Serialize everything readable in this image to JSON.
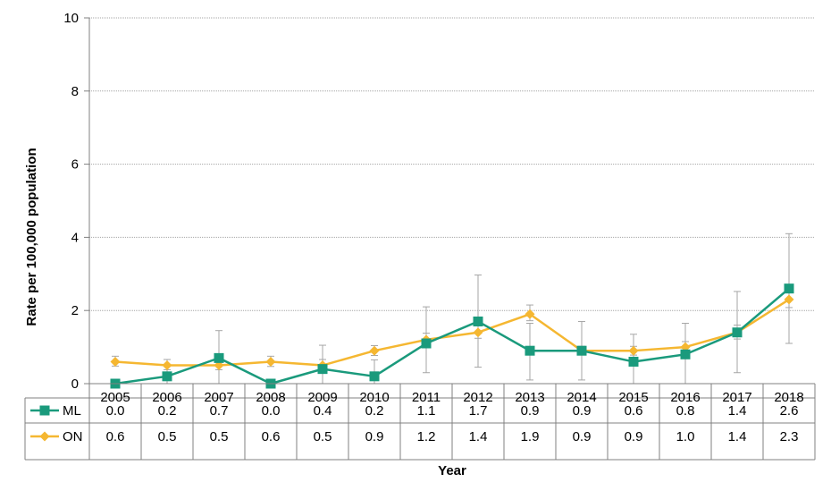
{
  "chart_data": {
    "type": "line",
    "title": "",
    "xlabel": "Year",
    "ylabel": "Rate per 100,000 population",
    "ylim": [
      0,
      10
    ],
    "yticks": [
      0,
      2,
      4,
      6,
      8,
      10
    ],
    "grid": true,
    "legend": "data-table-left",
    "categories": [
      "2005",
      "2006",
      "2007",
      "2008",
      "2009",
      "2010",
      "2011",
      "2012",
      "2013",
      "2014",
      "2015",
      "2016",
      "2017",
      "2018"
    ],
    "series": [
      {
        "name": "ML",
        "color": "#1a9a7c",
        "marker": "square",
        "values": [
          0.0,
          0.2,
          0.7,
          0.0,
          0.4,
          0.2,
          1.1,
          1.7,
          0.9,
          0.9,
          0.6,
          0.8,
          1.4,
          2.6
        ],
        "labels": [
          "0.0",
          "0.2",
          "0.7",
          "0.0",
          "0.4",
          "0.2",
          "1.1",
          "1.7",
          "0.9",
          "0.9",
          "0.6",
          "0.8",
          "1.4",
          "2.6"
        ],
        "ci_low": [
          0.0,
          0.0,
          0.0,
          0.0,
          0.0,
          0.0,
          0.3,
          0.45,
          0.1,
          0.1,
          0.0,
          0.0,
          0.3,
          1.1
        ],
        "ci_high": [
          0.0,
          0.5,
          1.45,
          0.0,
          1.05,
          0.65,
          2.1,
          2.97,
          1.65,
          1.7,
          1.35,
          1.65,
          2.52,
          4.1
        ]
      },
      {
        "name": "ON",
        "color": "#f5b731",
        "marker": "diamond",
        "values": [
          0.6,
          0.5,
          0.5,
          0.6,
          0.5,
          0.9,
          1.2,
          1.4,
          1.9,
          0.9,
          0.9,
          1.0,
          1.4,
          2.3
        ],
        "labels": [
          "0.6",
          "0.5",
          "0.5",
          "0.6",
          "0.5",
          "0.9",
          "1.2",
          "1.4",
          "1.9",
          "0.9",
          "0.9",
          "1.0",
          "1.4",
          "2.3"
        ],
        "ci_low": [
          0.48,
          0.38,
          0.38,
          0.47,
          0.38,
          0.77,
          1.05,
          1.24,
          1.72,
          0.8,
          0.78,
          0.88,
          1.22,
          2.08
        ],
        "ci_high": [
          0.75,
          0.66,
          0.66,
          0.75,
          0.66,
          1.04,
          1.38,
          1.58,
          2.15,
          1.02,
          1.02,
          1.15,
          1.6,
          2.5
        ]
      }
    ]
  }
}
